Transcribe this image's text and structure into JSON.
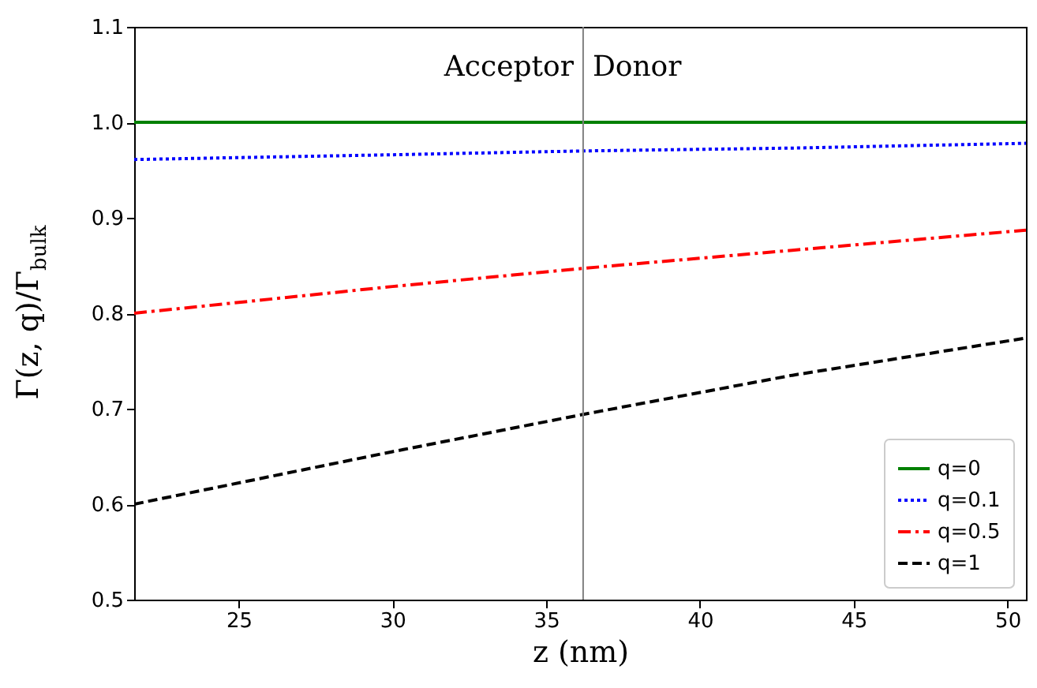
{
  "chart_data": {
    "type": "line",
    "xlabel": "z (nm)",
    "ylabel": "Γ(z, q)/Γ$_{bulk}$",
    "x": [
      21.6,
      30,
      36.2,
      43,
      50.6
    ],
    "xlim": [
      21.6,
      50.6
    ],
    "xticks": [
      25,
      30,
      35,
      40,
      45,
      50
    ],
    "ylim": [
      0.5,
      1.1
    ],
    "yticks": [
      0.5,
      0.6,
      0.7,
      0.8,
      0.9,
      {
        "value": 1,
        "label": "1.0"
      },
      1.1
    ],
    "series": [
      {
        "name": "q=0",
        "color": "#008000",
        "line_style": "solid",
        "values": [
          1.0,
          1.0,
          1.0,
          1.0,
          1.0
        ]
      },
      {
        "name": "q=0.1",
        "color": "#0000ff",
        "line_style": "dotted",
        "values": [
          0.961,
          0.966,
          0.97,
          0.973,
          0.978
        ]
      },
      {
        "name": "q=0.5",
        "color": "#ff0000",
        "line_style": "dashdot",
        "values": [
          0.8,
          0.828,
          0.847,
          0.866,
          0.887
        ]
      },
      {
        "name": "q=1",
        "color": "#000000",
        "line_style": "dashed",
        "values": [
          0.6,
          0.655,
          0.694,
          0.735,
          0.774
        ]
      }
    ],
    "ref_lines": [
      {
        "axis": "x",
        "value": 36.2,
        "color": "#808080"
      }
    ],
    "annotations": [
      "Acceptor",
      "Donor"
    ],
    "legend": "bottom right",
    "grid": false,
    "marker": "none"
  }
}
